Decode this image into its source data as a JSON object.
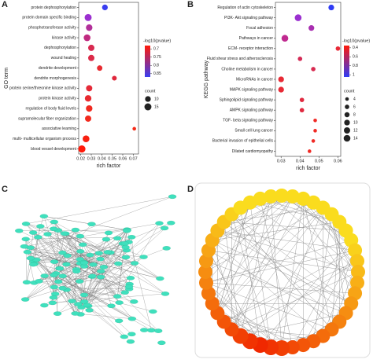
{
  "panel_labels": [
    "A",
    "B",
    "C",
    "D"
  ],
  "chart_data": [
    {
      "type": "dot",
      "ylabel": "GO term",
      "xlabel": "rich factor",
      "categories": [
        "protein dephosphorylation",
        "protein domain specific binding",
        "phosphotransferase activity",
        "kinase activity",
        "dephosphorylation",
        "wound healing",
        "dendrite development",
        "dendrite morphogenesis",
        "protein serine/threonine kinase activity",
        "protein kinase activity",
        "regulation of body fluid levels",
        "supramolecular fiber organization",
        "associative learning",
        "multi- multicellular organism process",
        "blood vessel development"
      ],
      "values": [
        0.043,
        0.027,
        0.028,
        0.026,
        0.03,
        0.03,
        0.038,
        0.052,
        0.028,
        0.027,
        0.028,
        0.027,
        0.071,
        0.025,
        0.021
      ],
      "counts": [
        10,
        15,
        13,
        14,
        12,
        12,
        9,
        7,
        12,
        13,
        13,
        12,
        4,
        14,
        16
      ],
      "colors": [
        "#3a3ef0",
        "#9b30d0",
        "#b2309a",
        "#c02a80",
        "#d82a50",
        "#dc2a48",
        "#e82a30",
        "#e0283c",
        "#e52a38",
        "#e82a30",
        "#f02a20",
        "#f22a1e",
        "#f52a18",
        "#f82010",
        "#ff1a0a"
      ],
      "xlim": [
        0.018,
        0.075
      ],
      "xticks": [
        0.02,
        0.03,
        0.04,
        0.05,
        0.06,
        0.07
      ],
      "colorbar": {
        "title": "-log10(pvalue)",
        "lim": [
          0.68,
          0.87
        ],
        "ticks": [
          0.7,
          0.75,
          0.8,
          0.85
        ],
        "colors": [
          "#ff1a0a",
          "#3a3ef0"
        ]
      },
      "size_legend": {
        "title": "count",
        "values": [
          10,
          15
        ]
      }
    },
    {
      "type": "dot",
      "ylabel": "KEGG pathway",
      "xlabel": "rich factor",
      "categories": [
        "Regulation of actin cytoskeleton",
        "PI3K- Akt signaling pathway",
        "Focal adhesion",
        "Pathways in cancer",
        "ECM- receptor interaction",
        "Fluid shear stress and atherosclerosis",
        "Choline metabolism in cancer",
        "MicroRNAs in cancer",
        "MAPK signaling pathway",
        "Sphingolipid signaling pathway",
        "AMPK signaling pathway",
        "TGF- beta signaling pathway",
        "Small cell lung cancer",
        "Bacterial invasion of epithelial cells",
        "Dilated cardiomyopathy"
      ],
      "values": [
        0.0565,
        0.039,
        0.046,
        0.032,
        0.06,
        0.04,
        0.047,
        0.03,
        0.03,
        0.041,
        0.041,
        0.048,
        0.048,
        0.047,
        0.045
      ],
      "counts": [
        10,
        14,
        10,
        14,
        6,
        6,
        6,
        10,
        10,
        6,
        6,
        4,
        4,
        4,
        4
      ],
      "colors": [
        "#2f3bf5",
        "#9b30d0",
        "#a82eb0",
        "#c02a90",
        "#e82a38",
        "#d42a55",
        "#d82a50",
        "#e82a35",
        "#e82a35",
        "#e02a40",
        "#e02a40",
        "#f02a25",
        "#f02a25",
        "#f02a25",
        "#f02a25"
      ],
      "xlim": [
        0.027,
        0.0615
      ],
      "xticks": [
        0.03,
        0.04,
        0.05,
        0.06
      ],
      "colorbar": {
        "title": "-log10(pvalue)",
        "lim": [
          0.35,
          1.05
        ],
        "ticks": [
          0.4,
          0.6,
          0.8,
          1.0
        ],
        "colors": [
          "#ff1a0a",
          "#2f3bf5"
        ]
      },
      "size_legend": {
        "title": "count",
        "values": [
          4,
          6,
          8,
          10,
          12,
          14
        ]
      }
    }
  ]
}
